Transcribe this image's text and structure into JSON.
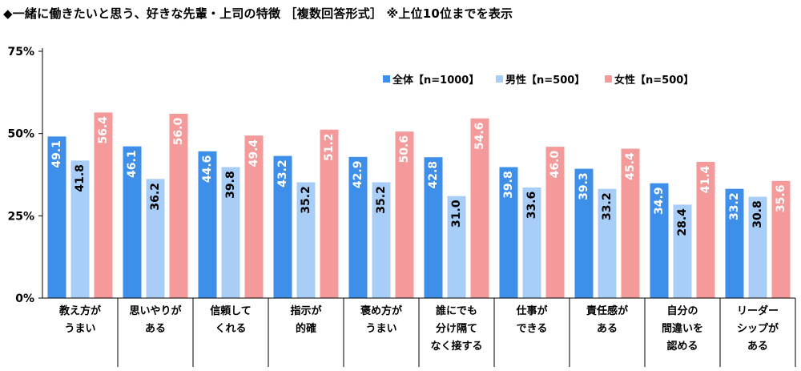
{
  "title": "◆一緒に働きたいと思う、好きな先輩・上司の特徴 ［複数回答形式］ ※上位10位までを表示",
  "colors": {
    "series": [
      "#3d8fea",
      "#a8cdf6",
      "#f59a9a"
    ]
  },
  "chart_data": {
    "type": "bar",
    "title": "◆一緒に働きたいと思う、好きな先輩・上司の特徴 ［複数回答形式］ ※上位10位までを表示",
    "ylim": [
      0,
      75
    ],
    "yticks": [
      "0%",
      "25%",
      "50%",
      "75%"
    ],
    "grid": false,
    "legend_position": "top-right",
    "categories": [
      [
        "教え方が",
        "うまい"
      ],
      [
        "思いやりが",
        "ある"
      ],
      [
        "信頼して",
        "くれる"
      ],
      [
        "指示が",
        "的確"
      ],
      [
        "褒め方が",
        "うまい"
      ],
      [
        "誰にでも",
        "分け隔て",
        "なく接する"
      ],
      [
        "仕事が",
        "できる"
      ],
      [
        "責任感が",
        "ある"
      ],
      [
        "自分の",
        "間違いを",
        "認める"
      ],
      [
        "リーダー",
        "シップが",
        "ある"
      ]
    ],
    "series": [
      {
        "name": "全体【n=1000】",
        "values": [
          49.1,
          46.1,
          44.6,
          43.2,
          42.9,
          42.8,
          39.8,
          39.3,
          34.9,
          33.2
        ]
      },
      {
        "name": "男性【n=500】",
        "values": [
          41.8,
          36.2,
          39.8,
          35.2,
          35.2,
          31.0,
          33.6,
          33.2,
          28.4,
          30.8
        ]
      },
      {
        "name": "女性【n=500】",
        "values": [
          56.4,
          56.0,
          49.4,
          51.2,
          50.6,
          54.6,
          46.0,
          45.4,
          41.4,
          35.6
        ]
      }
    ]
  }
}
